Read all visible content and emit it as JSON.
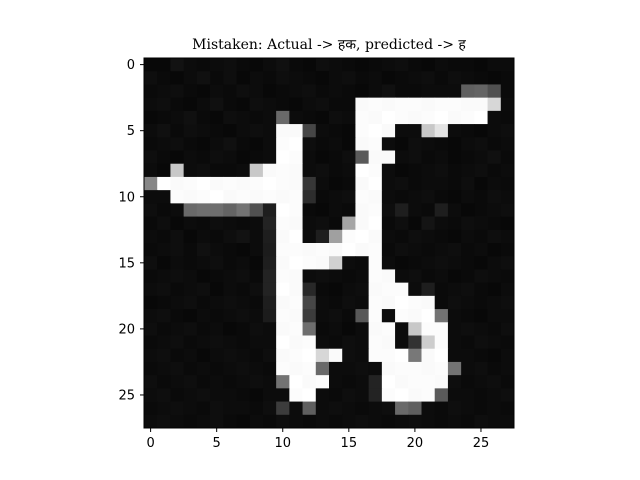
{
  "chart_data": {
    "type": "heatmap",
    "title": "Mistaken: Actual -> हक, predicted -> ह",
    "xlabel": "",
    "ylabel": "",
    "colormap": "gray",
    "shape": [
      28,
      28
    ],
    "value_range": [
      0,
      255
    ],
    "xlim": [
      -0.5,
      27.5
    ],
    "ylim": [
      27.5,
      -0.5
    ],
    "x_ticks": [
      0,
      5,
      10,
      15,
      20,
      25
    ],
    "y_ticks": [
      0,
      5,
      10,
      15,
      20,
      25
    ],
    "grid": false,
    "legend": "none",
    "pixels": [
      [
        8,
        8,
        18,
        12,
        10,
        12,
        14,
        10,
        8,
        12,
        16,
        10,
        8,
        14,
        12,
        10,
        8,
        10,
        12,
        14,
        10,
        8,
        12,
        10,
        10,
        8,
        12,
        12
      ],
      [
        14,
        10,
        8,
        12,
        16,
        10,
        14,
        8,
        12,
        10,
        14,
        12,
        10,
        8,
        12,
        14,
        10,
        12,
        8,
        10,
        12,
        14,
        10,
        14,
        12,
        10,
        8,
        10
      ],
      [
        10,
        12,
        14,
        10,
        8,
        12,
        10,
        14,
        12,
        8,
        10,
        12,
        14,
        10,
        12,
        10,
        8,
        12,
        16,
        10,
        10,
        12,
        12,
        12,
        96,
        100,
        80,
        10
      ],
      [
        12,
        14,
        10,
        8,
        12,
        16,
        10,
        8,
        14,
        12,
        10,
        8,
        12,
        14,
        10,
        10,
        250,
        252,
        250,
        252,
        252,
        250,
        252,
        252,
        250,
        250,
        215,
        12
      ],
      [
        8,
        10,
        12,
        16,
        10,
        8,
        14,
        12,
        10,
        12,
        105,
        12,
        10,
        8,
        14,
        12,
        252,
        250,
        255,
        252,
        250,
        252,
        255,
        250,
        252,
        255,
        12,
        10
      ],
      [
        12,
        16,
        10,
        14,
        12,
        10,
        8,
        12,
        14,
        12,
        250,
        250,
        70,
        12,
        10,
        8,
        252,
        255,
        250,
        12,
        12,
        200,
        228,
        12,
        10,
        8,
        12,
        14
      ],
      [
        10,
        12,
        14,
        10,
        8,
        12,
        16,
        10,
        8,
        12,
        252,
        255,
        14,
        10,
        12,
        8,
        250,
        252,
        12,
        8,
        14,
        12,
        10,
        8,
        12,
        14,
        10,
        12
      ],
      [
        14,
        10,
        8,
        12,
        10,
        14,
        12,
        8,
        10,
        12,
        255,
        252,
        12,
        8,
        10,
        14,
        90,
        250,
        250,
        12,
        14,
        10,
        12,
        8,
        10,
        12,
        16,
        10
      ],
      [
        12,
        8,
        200,
        12,
        14,
        10,
        10,
        12,
        200,
        250,
        252,
        250,
        12,
        14,
        10,
        12,
        255,
        252,
        12,
        8,
        10,
        12,
        14,
        10,
        12,
        14,
        10,
        12
      ],
      [
        135,
        255,
        250,
        252,
        255,
        250,
        252,
        250,
        252,
        255,
        252,
        250,
        55,
        12,
        8,
        10,
        250,
        255,
        12,
        14,
        10,
        12,
        12,
        10,
        14,
        8,
        12,
        10
      ],
      [
        12,
        12,
        252,
        250,
        252,
        255,
        250,
        252,
        250,
        252,
        250,
        252,
        45,
        10,
        12,
        14,
        252,
        250,
        12,
        10,
        12,
        14,
        10,
        8,
        12,
        10,
        14,
        12
      ],
      [
        14,
        10,
        12,
        105,
        110,
        110,
        100,
        115,
        80,
        30,
        255,
        252,
        10,
        8,
        12,
        10,
        250,
        252,
        14,
        30,
        12,
        10,
        30,
        12,
        8,
        10,
        12,
        14
      ],
      [
        10,
        14,
        8,
        12,
        10,
        14,
        12,
        10,
        12,
        35,
        252,
        250,
        12,
        14,
        10,
        165,
        250,
        255,
        10,
        14,
        8,
        20,
        12,
        10,
        14,
        12,
        10,
        8
      ],
      [
        12,
        10,
        14,
        8,
        12,
        10,
        14,
        18,
        12,
        30,
        250,
        255,
        12,
        30,
        160,
        252,
        255,
        250,
        12,
        10,
        14,
        12,
        10,
        8,
        12,
        10,
        14,
        12
      ],
      [
        10,
        12,
        14,
        10,
        16,
        12,
        10,
        8,
        12,
        28,
        252,
        252,
        250,
        252,
        250,
        255,
        250,
        252,
        10,
        14,
        12,
        10,
        12,
        14,
        10,
        12,
        8,
        10
      ],
      [
        14,
        8,
        12,
        10,
        12,
        14,
        10,
        12,
        8,
        30,
        250,
        255,
        252,
        250,
        208,
        12,
        10,
        252,
        12,
        8,
        10,
        12,
        14,
        12,
        10,
        8,
        12,
        14
      ],
      [
        10,
        12,
        14,
        12,
        8,
        10,
        12,
        14,
        10,
        35,
        252,
        250,
        12,
        14,
        12,
        10,
        12,
        252,
        250,
        12,
        14,
        10,
        12,
        8,
        10,
        14,
        12,
        10
      ],
      [
        12,
        14,
        10,
        12,
        14,
        8,
        12,
        10,
        14,
        35,
        255,
        250,
        40,
        10,
        8,
        12,
        14,
        250,
        252,
        252,
        12,
        30,
        10,
        12,
        14,
        10,
        8,
        12
      ],
      [
        8,
        10,
        12,
        14,
        10,
        12,
        14,
        12,
        10,
        30,
        250,
        252,
        70,
        12,
        10,
        14,
        12,
        252,
        250,
        255,
        252,
        250,
        10,
        14,
        12,
        10,
        12,
        14
      ],
      [
        12,
        14,
        10,
        8,
        12,
        10,
        12,
        14,
        12,
        28,
        252,
        250,
        60,
        12,
        14,
        10,
        88,
        252,
        12,
        252,
        250,
        255,
        115,
        12,
        10,
        8,
        12,
        12
      ],
      [
        14,
        10,
        12,
        14,
        10,
        12,
        8,
        10,
        14,
        12,
        250,
        252,
        110,
        10,
        12,
        8,
        12,
        250,
        252,
        12,
        200,
        252,
        252,
        12,
        14,
        12,
        10,
        14
      ],
      [
        10,
        12,
        14,
        10,
        12,
        14,
        12,
        10,
        12,
        12,
        255,
        250,
        252,
        12,
        10,
        14,
        12,
        252,
        250,
        12,
        50,
        205,
        252,
        12,
        10,
        14,
        12,
        10
      ],
      [
        12,
        14,
        10,
        12,
        8,
        12,
        14,
        12,
        10,
        14,
        250,
        252,
        255,
        215,
        250,
        14,
        12,
        252,
        252,
        255,
        120,
        250,
        255,
        12,
        12,
        10,
        8,
        12
      ],
      [
        10,
        12,
        14,
        10,
        12,
        10,
        12,
        14,
        12,
        10,
        252,
        250,
        252,
        105,
        12,
        12,
        14,
        12,
        250,
        252,
        252,
        250,
        252,
        115,
        12,
        14,
        10,
        12
      ],
      [
        14,
        10,
        12,
        14,
        10,
        12,
        10,
        12,
        14,
        12,
        115,
        255,
        250,
        252,
        12,
        10,
        12,
        35,
        255,
        250,
        252,
        252,
        250,
        14,
        10,
        12,
        14,
        10
      ],
      [
        12,
        14,
        10,
        12,
        14,
        12,
        12,
        10,
        8,
        12,
        12,
        252,
        255,
        12,
        10,
        14,
        12,
        35,
        252,
        255,
        250,
        252,
        90,
        12,
        12,
        10,
        12,
        14
      ],
      [
        10,
        12,
        14,
        12,
        10,
        14,
        12,
        12,
        10,
        14,
        60,
        12,
        95,
        12,
        14,
        12,
        10,
        12,
        14,
        105,
        95,
        12,
        10,
        14,
        12,
        10,
        12,
        10
      ],
      [
        12,
        14,
        12,
        10,
        12,
        14,
        10,
        8,
        12,
        10,
        14,
        12,
        10,
        12,
        10,
        12,
        14,
        12,
        10,
        12,
        14,
        12,
        10,
        12,
        10,
        14,
        12,
        12
      ]
    ]
  }
}
